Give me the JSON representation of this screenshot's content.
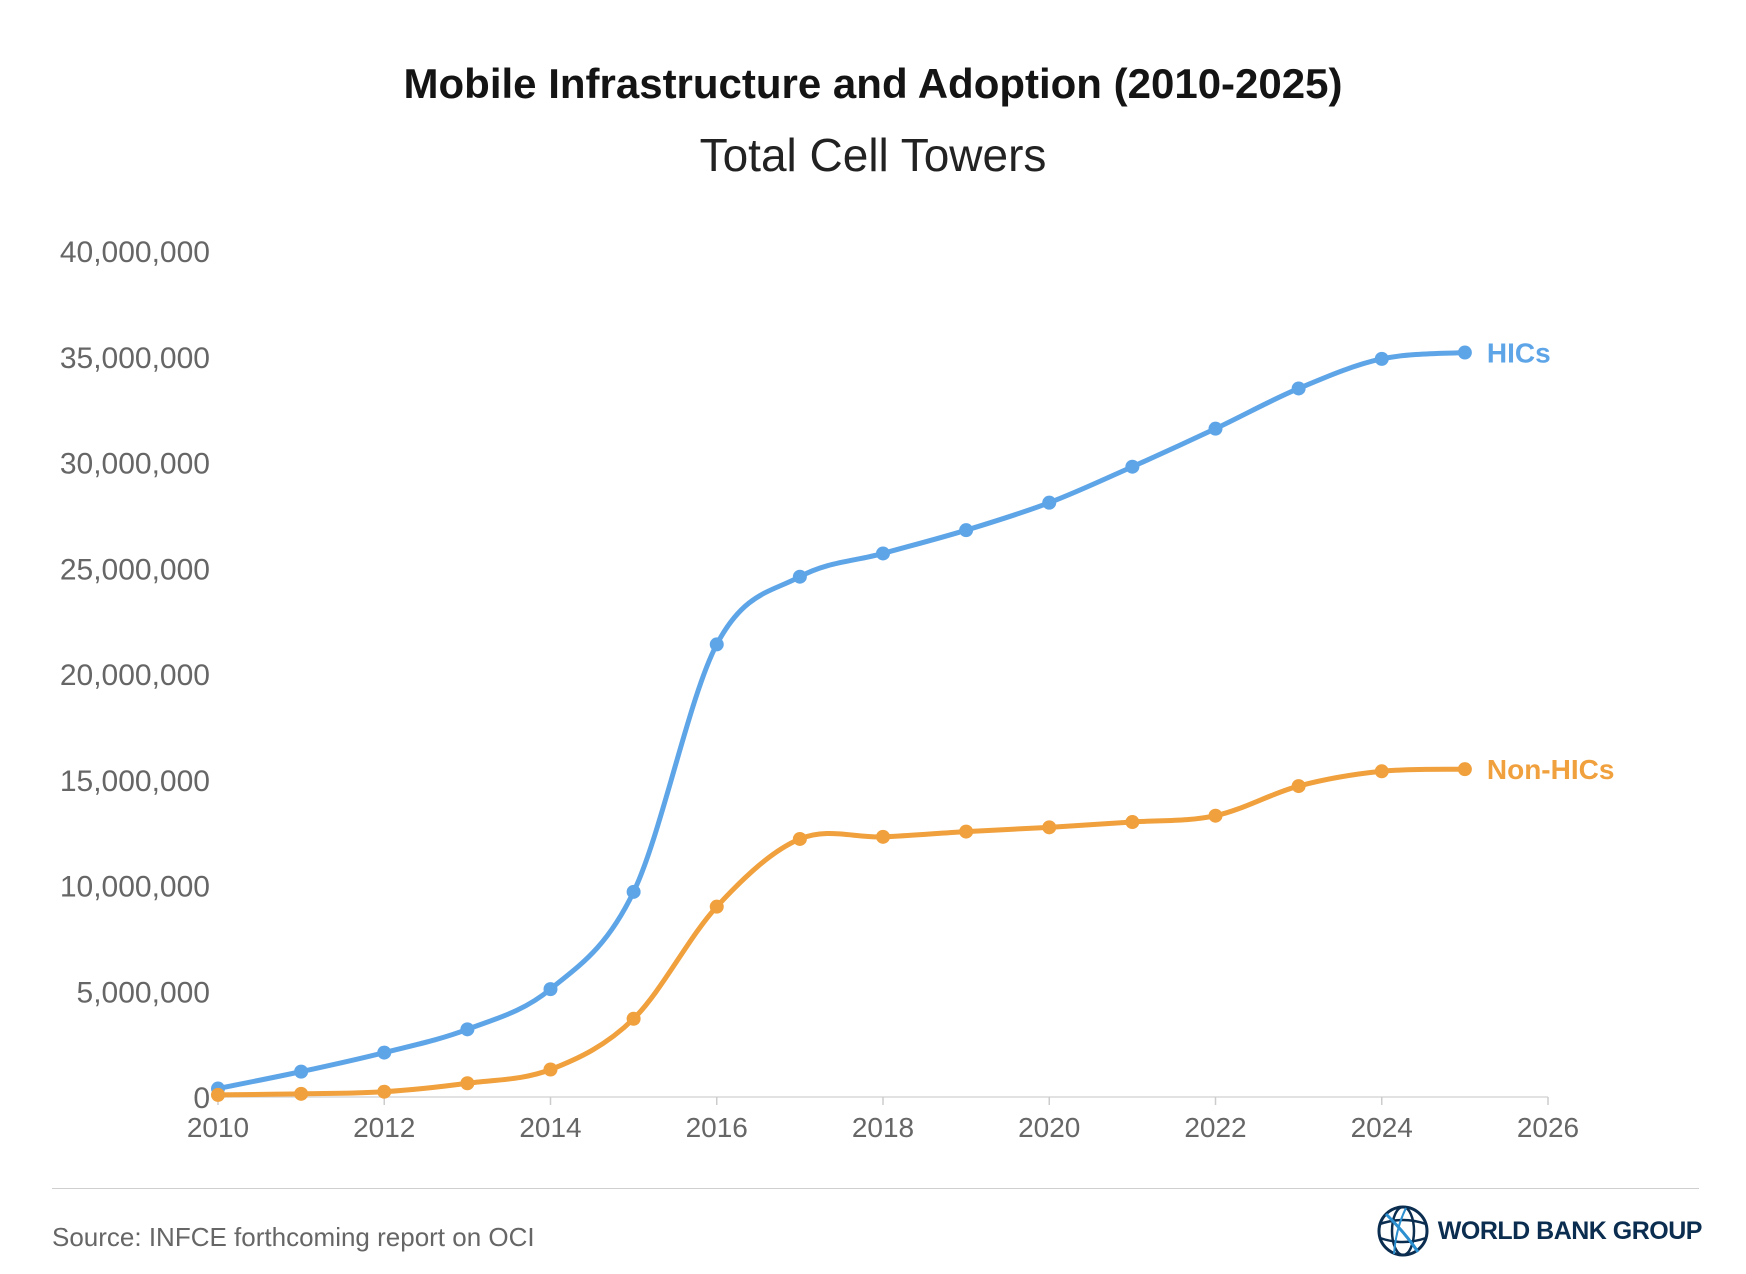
{
  "title": "Mobile Infrastructure and Adoption (2010-2025)",
  "subtitle": "Total Cell Towers",
  "source": "Source: INFCE forthcoming report on OCI",
  "logo_text": "WORLD BANK GROUP",
  "colors": {
    "hics": "#5ea5e8",
    "non_hics": "#f0a03c",
    "logo": "#0b2d4f"
  },
  "chart_data": {
    "type": "line",
    "xlim": [
      2010,
      2026
    ],
    "ylim": [
      0,
      40000000
    ],
    "x_ticks": [
      2010,
      2012,
      2014,
      2016,
      2018,
      2020,
      2022,
      2024,
      2026
    ],
    "x_tick_labels": [
      "2010",
      "2012",
      "2014",
      "2016",
      "2018",
      "2020",
      "2022",
      "2024",
      "2026"
    ],
    "y_ticks": [
      0,
      5000000,
      10000000,
      15000000,
      20000000,
      25000000,
      30000000,
      35000000,
      40000000
    ],
    "y_tick_labels": [
      "0",
      "5,000,000",
      "10,000,000",
      "15,000,000",
      "20,000,000",
      "25,000,000",
      "30,000,000",
      "35,000,000",
      "40,000,000"
    ],
    "grid": false,
    "legend": "inline-end-labels",
    "series": [
      {
        "name": "HICs",
        "color": "#5ea5e8",
        "x": [
          2010,
          2011,
          2012,
          2013,
          2014,
          2015,
          2016,
          2017,
          2018,
          2019,
          2020,
          2021,
          2022,
          2023,
          2024,
          2025
        ],
        "y": [
          400000,
          1200000,
          2100000,
          3200000,
          5100000,
          9700000,
          21400000,
          24600000,
          25700000,
          26800000,
          28100000,
          29800000,
          31600000,
          33500000,
          34900000,
          35200000
        ]
      },
      {
        "name": "Non-HICs",
        "color": "#f0a03c",
        "x": [
          2010,
          2011,
          2012,
          2013,
          2014,
          2015,
          2016,
          2017,
          2018,
          2019,
          2020,
          2021,
          2022,
          2023,
          2024,
          2025
        ],
        "y": [
          100000,
          150000,
          250000,
          650000,
          1300000,
          3700000,
          9000000,
          12200000,
          12300000,
          12550000,
          12750000,
          13000000,
          13300000,
          14700000,
          15400000,
          15500000
        ]
      }
    ]
  }
}
